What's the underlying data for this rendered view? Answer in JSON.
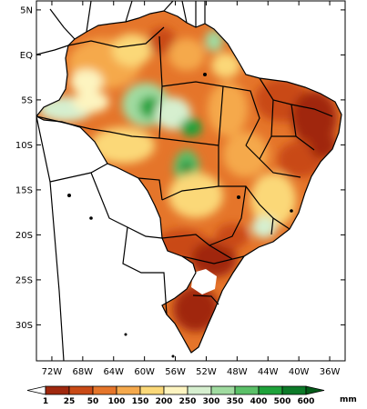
{
  "map": {
    "lat_ticks": [
      "5N",
      "EQ",
      "5S",
      "10S",
      "15S",
      "20S",
      "25S",
      "30S"
    ],
    "lon_ticks": [
      "72W",
      "68W",
      "64W",
      "60W",
      "56W",
      "52W",
      "48W",
      "44W",
      "40W",
      "36W"
    ],
    "lon_range_deg": [
      -74,
      -34
    ],
    "lat_range_deg": [
      -34,
      6
    ],
    "background_color": "#ffffff",
    "border_color": "#000000",
    "land_outside_region_color": "#ffffff"
  },
  "colorbar": {
    "labels": [
      "1",
      "25",
      "50",
      "100",
      "150",
      "200",
      "250",
      "300",
      "350",
      "400",
      "500",
      "600"
    ],
    "unit": "mm",
    "colors": [
      "#ffffff",
      "#a0280e",
      "#c94a16",
      "#e5752a",
      "#f5a94c",
      "#fbd878",
      "#fdf4c0",
      "#d6efcf",
      "#a0dba0",
      "#5bc068",
      "#1ea23a",
      "#0c7a28",
      "#045a18"
    ]
  }
}
